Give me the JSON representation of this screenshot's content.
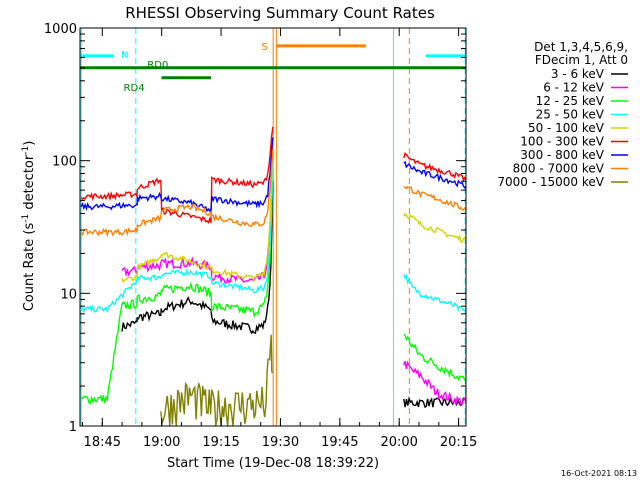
{
  "chart_data": {
    "type": "line",
    "title": "RHESSI Observing Summary Count Rates",
    "xlabel": "Start Time (19-Dec-08 18:39:22)",
    "ylabel_main": "Count Rate (s",
    "ylabel_sup1": "-1",
    "ylabel_mid": " detector",
    "ylabel_sup2": "-1",
    "ylabel_end": ")",
    "y_scale": "log",
    "ylim": [
      1,
      1000
    ],
    "xlim_minutes": [
      0,
      97.5
    ],
    "x_ticks": [
      {
        "m": 5.63,
        "label": "18:45"
      },
      {
        "m": 20.63,
        "label": "19:00"
      },
      {
        "m": 35.63,
        "label": "19:15"
      },
      {
        "m": 50.63,
        "label": "19:30"
      },
      {
        "m": 65.63,
        "label": "19:45"
      },
      {
        "m": 80.63,
        "label": "20:00"
      },
      {
        "m": 95.63,
        "label": "20:15"
      }
    ],
    "y_ticks": [
      {
        "v": 1,
        "label": "1"
      },
      {
        "v": 10,
        "label": "10"
      },
      {
        "v": 100,
        "label": "100"
      },
      {
        "v": 1000,
        "label": "1000"
      }
    ],
    "legend_header": [
      "Det 1,3,4,5,6,9,",
      "FDecim 1, Att 0"
    ],
    "footer_timestamp": "16-Oct-2021 08:13",
    "flags": [
      {
        "label": "N",
        "color": "#00ffff",
        "segments": [
          [
            0,
            8.5
          ],
          [
            87.3,
            97.5
          ]
        ],
        "level": 0.93
      },
      {
        "label": "RD0",
        "color": "#008000",
        "segments": [
          [
            0,
            97.5
          ]
        ],
        "level": 0.9
      },
      {
        "label": "RD4",
        "color": "#008000",
        "segments": [
          [
            20.6,
            33.1
          ]
        ],
        "level": 0.875
      },
      {
        "label": "S",
        "color": "#ff8000",
        "segments": [
          [
            49.6,
            72.2
          ]
        ],
        "level": 0.955
      }
    ],
    "vlines": [
      {
        "m": 0.3,
        "color": "#00ffff",
        "dash": false
      },
      {
        "m": 14.1,
        "color": "#00ffff",
        "dash": true
      },
      {
        "m": 48.8,
        "color": "#ff8000",
        "dash": false
      },
      {
        "m": 49.6,
        "color": "#ff8000",
        "dash": false
      },
      {
        "m": 79.2,
        "color": "#00ffff",
        "dash": false
      },
      {
        "m": 83.2,
        "color": "#ff8000",
        "dash": true
      },
      {
        "m": 97.3,
        "color": "#00ffff",
        "dash": true
      }
    ],
    "series": [
      {
        "name": "3 - 6 keV",
        "color": "#000000",
        "x": [
          10.6,
          14.4,
          14.5,
          20.4,
          20.6,
          28.0,
          33.1,
          33.3,
          41.0,
          44.0,
          46.5,
          47.4,
          48.0,
          48.4,
          48.7,
          49.6,
          81.8,
          97.5
        ],
        "y": [
          5.6,
          6.0,
          6.6,
          7.0,
          7.6,
          8.8,
          7.5,
          6.2,
          5.6,
          5.4,
          5.8,
          7.6,
          12,
          25,
          70,
          null,
          1.5,
          1.5
        ]
      },
      {
        "name": "6 - 12 keV",
        "color": "#ff00ff",
        "x": [
          10.6,
          14.4,
          14.5,
          20.4,
          20.6,
          28.0,
          33.1,
          33.3,
          41.0,
          44.0,
          46.5,
          47.4,
          48.0,
          48.4,
          48.7,
          49.6,
          81.8,
          84.0,
          86.0,
          90.0,
          94.0,
          97.5
        ],
        "y": [
          14.5,
          14.8,
          15.8,
          16.3,
          16.7,
          16.9,
          16.0,
          13.5,
          12.5,
          12.3,
          13.5,
          18,
          30,
          60,
          120,
          null,
          3.0,
          2.6,
          2.4,
          1.8,
          1.6,
          1.5
        ]
      },
      {
        "name": "12 - 25 keV",
        "color": "#00ff00",
        "x": [
          0.3,
          6.9,
          10.6,
          14.4,
          14.5,
          20.4,
          20.6,
          28.0,
          33.1,
          33.3,
          41.0,
          44.0,
          46.5,
          47.4,
          48.0,
          48.4,
          48.7,
          49.6,
          81.8,
          84.0,
          86.0,
          90.0,
          94.0,
          97.5
        ],
        "y": [
          1.6,
          1.6,
          8.0,
          8.4,
          9.0,
          9.7,
          10.5,
          11.5,
          10.0,
          8.0,
          7.5,
          7.3,
          8.0,
          11,
          18,
          40,
          90,
          null,
          5.0,
          4.0,
          3.4,
          2.9,
          2.5,
          2.2
        ]
      },
      {
        "name": "25 - 50 keV",
        "color": "#00ffff",
        "x": [
          0.3,
          6.9,
          14.4,
          14.5,
          20.4,
          20.6,
          28.0,
          33.1,
          33.3,
          41.0,
          44.0,
          46.5,
          47.4,
          48.0,
          48.4,
          48.7,
          49.6,
          81.8,
          84.0,
          86.0,
          90.0,
          94.0,
          97.5
        ],
        "y": [
          7.6,
          7.6,
          12.5,
          13.0,
          13.3,
          14.0,
          14.5,
          13.5,
          12.0,
          11.0,
          10.5,
          11.0,
          14,
          22,
          45,
          100,
          null,
          14,
          11,
          10,
          9.0,
          8.2,
          7.2
        ]
      },
      {
        "name": "50 - 100 keV",
        "color": "#d4d400",
        "x": [
          10.6,
          14.4,
          14.5,
          20.4,
          20.6,
          28.0,
          33.1,
          33.3,
          41.0,
          44.0,
          46.5,
          47.4,
          48.0,
          48.4,
          48.7,
          49.6,
          81.8,
          84.0,
          86.0,
          90.0,
          94.0,
          97.5
        ],
        "y": [
          12.5,
          13.3,
          15.5,
          19.0,
          20.0,
          17.5,
          15.5,
          15.0,
          13.5,
          13.0,
          14.0,
          20,
          35,
          70,
          140,
          null,
          40,
          37,
          33,
          30,
          27,
          25
        ]
      },
      {
        "name": "100 - 300 keV",
        "color": "#ff0000",
        "x": [
          0.3,
          6.9,
          10.6,
          14.4,
          14.5,
          20.4,
          20.6,
          28.0,
          33.1,
          33.3,
          41.0,
          44.0,
          46.5,
          47.4,
          48.0,
          48.4,
          48.7,
          49.6,
          81.8,
          84.0,
          86.0,
          90.0,
          94.0,
          97.5
        ],
        "y": [
          54,
          54,
          55,
          56,
          62,
          72,
          42,
          38,
          35,
          72,
          68,
          66,
          68,
          80,
          110,
          150,
          180,
          null,
          110,
          100,
          93,
          86,
          80,
          72
        ]
      },
      {
        "name": "300 - 800 keV",
        "color": "#0000ff",
        "x": [
          0.3,
          6.9,
          10.6,
          14.4,
          14.5,
          20.4,
          20.6,
          28.0,
          33.1,
          33.3,
          41.0,
          44.0,
          46.5,
          47.4,
          48.0,
          48.4,
          48.7,
          49.6,
          81.8,
          84.0,
          86.0,
          90.0,
          94.0,
          97.5
        ],
        "y": [
          45,
          45,
          46,
          46,
          52,
          54,
          52,
          48,
          42,
          52,
          48,
          47,
          48,
          56,
          80,
          110,
          150,
          null,
          95,
          88,
          82,
          76,
          70,
          64
        ]
      },
      {
        "name": "800 - 7000 keV",
        "color": "#ff8000",
        "x": [
          0.3,
          6.9,
          10.6,
          14.4,
          14.5,
          20.4,
          20.6,
          28.0,
          33.1,
          33.3,
          41.0,
          44.0,
          46.5,
          47.4,
          48.0,
          48.4,
          48.7,
          49.6,
          81.8,
          84.0,
          86.0,
          90.0,
          94.0,
          97.5
        ],
        "y": [
          29,
          29,
          29,
          30,
          33,
          37,
          42,
          45,
          40,
          38,
          34,
          33,
          34,
          42,
          60,
          90,
          120,
          null,
          65,
          60,
          56,
          52,
          47,
          43
        ]
      },
      {
        "name": "7000 - 15000 keV",
        "color": "#808000",
        "x": [
          20.4,
          24.0,
          28.0,
          33.0,
          33.3,
          47.0,
          47.5,
          48.3,
          48.6
        ],
        "y": [
          1.3,
          1.5,
          1.7,
          1.4,
          1.4,
          1.5,
          2.5,
          4.0,
          2.5
        ]
      }
    ]
  }
}
